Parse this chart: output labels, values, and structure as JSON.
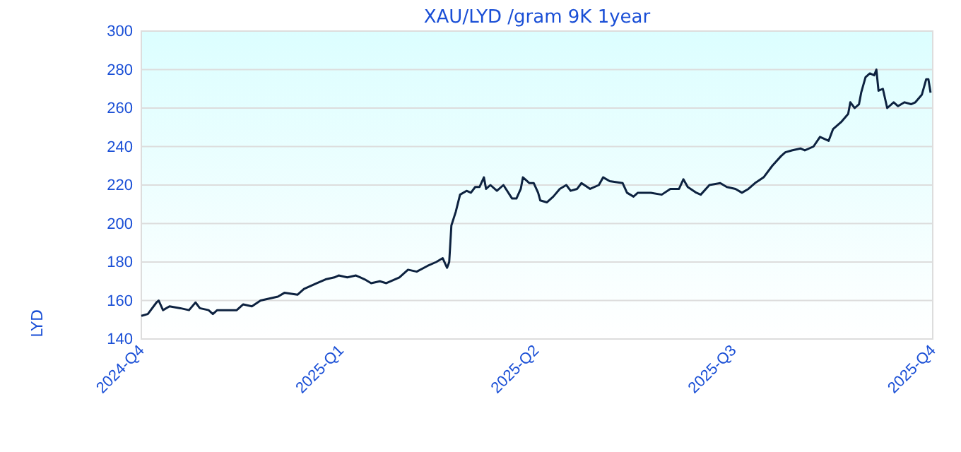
{
  "chart_data": {
    "type": "line",
    "title": "XAU/LYD /gram 9K 1year",
    "ylabel": "LYD",
    "xlim": [
      "2024-10-01",
      "2025-10-01"
    ],
    "xticks": [
      {
        "value": "2024-10-01",
        "label": "2024-Q4"
      },
      {
        "value": "2025-01-01",
        "label": "2025-Q1"
      },
      {
        "value": "2025-04-01",
        "label": "2025-Q2"
      },
      {
        "value": "2025-07-01",
        "label": "2025-Q3"
      },
      {
        "value": "2025-10-01",
        "label": "2025-Q4"
      }
    ],
    "ylim": [
      140,
      300
    ],
    "yticks": [
      140,
      160,
      180,
      200,
      220,
      240,
      260,
      280,
      300
    ],
    "grid": "y",
    "series": [
      {
        "color": "#0d2240",
        "x": [
          "2024-10-01",
          "2024-10-04",
          "2024-10-08",
          "2024-10-09",
          "2024-10-11",
          "2024-10-14",
          "2024-10-19",
          "2024-10-23",
          "2024-10-26",
          "2024-10-28",
          "2024-11-01",
          "2024-11-03",
          "2024-11-05",
          "2024-11-09",
          "2024-11-14",
          "2024-11-17",
          "2024-11-21",
          "2024-11-25",
          "2024-11-29",
          "2024-12-03",
          "2024-12-06",
          "2024-12-12",
          "2024-12-15",
          "2024-12-21",
          "2024-12-25",
          "2024-12-29",
          "2024-12-31",
          "2025-01-04",
          "2025-01-08",
          "2025-01-12",
          "2025-01-15",
          "2025-01-19",
          "2025-01-22",
          "2025-01-28",
          "2025-02-01",
          "2025-02-05",
          "2025-02-10",
          "2025-02-14",
          "2025-02-17",
          "2025-02-19",
          "2025-02-20",
          "2025-02-21",
          "2025-02-23",
          "2025-02-25",
          "2025-02-28",
          "2025-03-02",
          "2025-03-04",
          "2025-03-06",
          "2025-03-08",
          "2025-03-09",
          "2025-03-11",
          "2025-03-14",
          "2025-03-17",
          "2025-03-21",
          "2025-03-23",
          "2025-03-25",
          "2025-03-26",
          "2025-03-29",
          "2025-03-31",
          "2025-04-02",
          "2025-04-03",
          "2025-04-06",
          "2025-04-09",
          "2025-04-12",
          "2025-04-15",
          "2025-04-17",
          "2025-04-20",
          "2025-04-22",
          "2025-04-26",
          "2025-04-30",
          "2025-05-02",
          "2025-05-05",
          "2025-05-11",
          "2025-05-13",
          "2025-05-16",
          "2025-05-18",
          "2025-05-24",
          "2025-05-29",
          "2025-06-02",
          "2025-06-06",
          "2025-06-08",
          "2025-06-10",
          "2025-06-14",
          "2025-06-16",
          "2025-06-20",
          "2025-06-25",
          "2025-06-28",
          "2025-07-02",
          "2025-07-05",
          "2025-07-08",
          "2025-07-11",
          "2025-07-15",
          "2025-07-19",
          "2025-07-23",
          "2025-07-25",
          "2025-07-28",
          "2025-08-01",
          "2025-08-03",
          "2025-08-07",
          "2025-08-10",
          "2025-08-14",
          "2025-08-16",
          "2025-08-20",
          "2025-08-23",
          "2025-08-24",
          "2025-08-26",
          "2025-08-28",
          "2025-08-29",
          "2025-08-31",
          "2025-09-02",
          "2025-09-04",
          "2025-09-05",
          "2025-09-06",
          "2025-09-08",
          "2025-09-10",
          "2025-09-13",
          "2025-09-15",
          "2025-09-18",
          "2025-09-21",
          "2025-09-23",
          "2025-09-26",
          "2025-09-28",
          "2025-09-29",
          "2025-09-30"
        ],
        "values": [
          152,
          153,
          159,
          160,
          155,
          157,
          156,
          155,
          159,
          156,
          155,
          153,
          155,
          155,
          155,
          158,
          157,
          160,
          161,
          162,
          164,
          163,
          166,
          169,
          171,
          172,
          173,
          172,
          173,
          171,
          169,
          170,
          169,
          172,
          176,
          175,
          178,
          180,
          182,
          177,
          180,
          199,
          206,
          215,
          217,
          216,
          219,
          219,
          224,
          218,
          220,
          217,
          220,
          213,
          213,
          218,
          224,
          221,
          221,
          216,
          212,
          211,
          214,
          218,
          220,
          217,
          218,
          221,
          218,
          220,
          224,
          222,
          221,
          216,
          214,
          216,
          216,
          215,
          218,
          218,
          223,
          219,
          216,
          215,
          220,
          221,
          219,
          218,
          216,
          218,
          221,
          224,
          230,
          235,
          237,
          238,
          239,
          238,
          240,
          245,
          243,
          249,
          253,
          257,
          263,
          260,
          262,
          268,
          276,
          278,
          277,
          280,
          269,
          270,
          260,
          263,
          261,
          263,
          262,
          263,
          267,
          275,
          275,
          268
        ]
      }
    ]
  }
}
